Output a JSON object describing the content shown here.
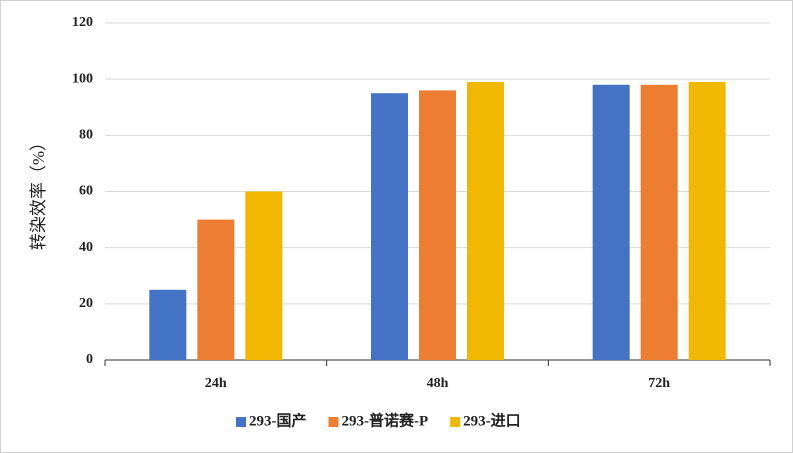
{
  "chart_data": {
    "type": "bar",
    "ylabel": "转染效率（%）",
    "categories": [
      "24h",
      "48h",
      "72h"
    ],
    "series": [
      {
        "name": "293-国产",
        "color": "#4472c4",
        "values": [
          25,
          95,
          98
        ]
      },
      {
        "name": "293-普诺赛-P",
        "color": "#ed7d31",
        "values": [
          50,
          96,
          98
        ]
      },
      {
        "name": "293-进口",
        "color": "#f0b800",
        "values": [
          60,
          99,
          99
        ]
      }
    ],
    "ylim": [
      0,
      120
    ],
    "yticks": [
      0,
      20,
      40,
      60,
      80,
      100,
      120
    ],
    "grid": true,
    "legend": "bottom"
  }
}
